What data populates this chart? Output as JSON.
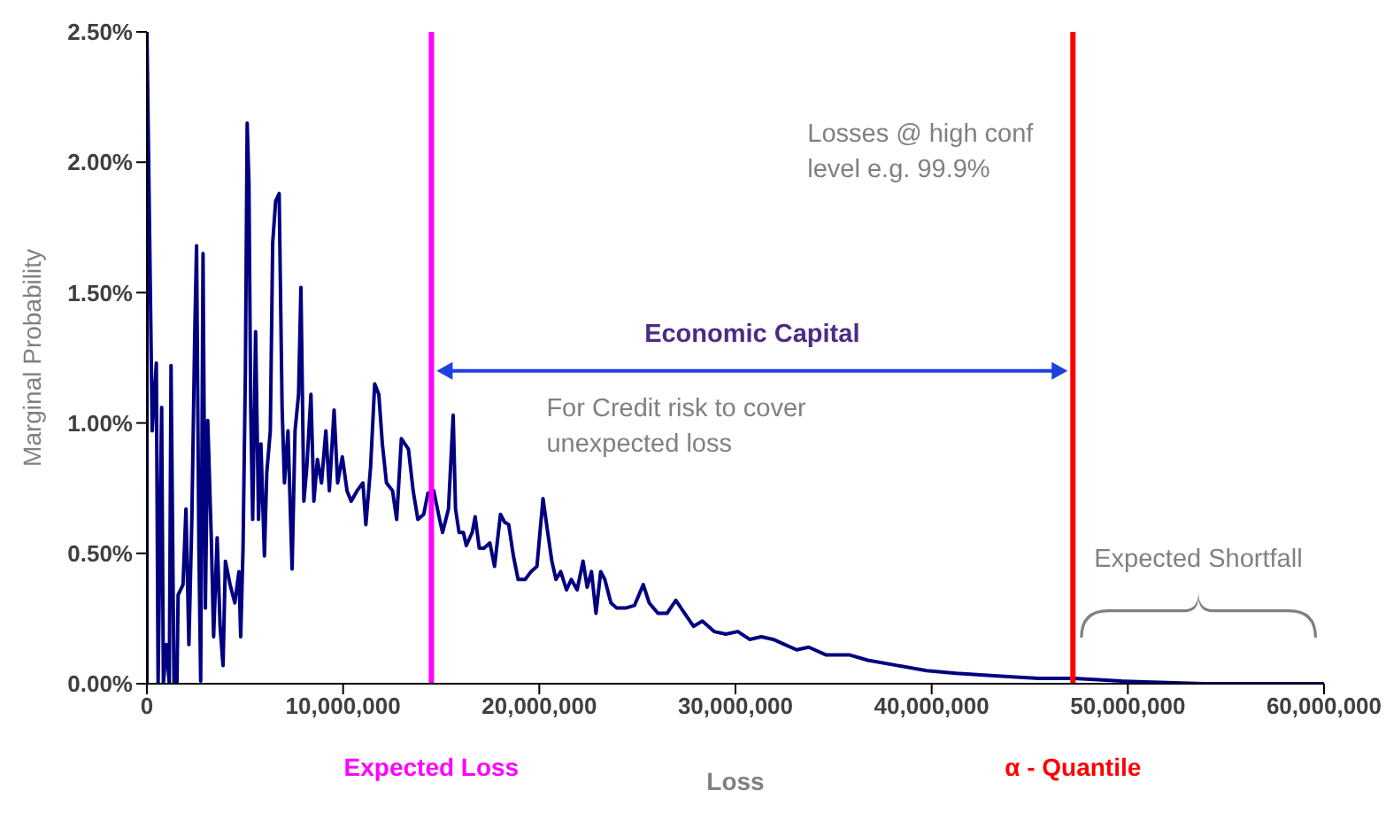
{
  "chart_data": {
    "type": "line",
    "xlabel": "Loss",
    "ylabel": "Marginal Probability",
    "x": [
      0,
      0,
      270000,
      480000,
      570000,
      630000,
      750000,
      840000,
      990000,
      1140000,
      1230000,
      1380000,
      1530000,
      1590000,
      1840000,
      1990000,
      2140000,
      2290000,
      2440000,
      2530000,
      2650000,
      2740000,
      2860000,
      2980000,
      3100000,
      3280000,
      3400000,
      3580000,
      3730000,
      3880000,
      4000000,
      4240000,
      4480000,
      4690000,
      4780000,
      4900000,
      5020000,
      5110000,
      5200000,
      5290000,
      5390000,
      5540000,
      5690000,
      5810000,
      5990000,
      6110000,
      6290000,
      6410000,
      6560000,
      6740000,
      6890000,
      7010000,
      7190000,
      7400000,
      7550000,
      7730000,
      7850000,
      8000000,
      8150000,
      8360000,
      8510000,
      8690000,
      8900000,
      9120000,
      9300000,
      9540000,
      9720000,
      9960000,
      10200000,
      10410000,
      10710000,
      11010000,
      11160000,
      11400000,
      11610000,
      11820000,
      12000000,
      12210000,
      12520000,
      12730000,
      12970000,
      13330000,
      13570000,
      13810000,
      14110000,
      14320000,
      14620000,
      14920000,
      15070000,
      15370000,
      15610000,
      15730000,
      15910000,
      16130000,
      16280000,
      16580000,
      16730000,
      16940000,
      17180000,
      17480000,
      17720000,
      18020000,
      18230000,
      18440000,
      18680000,
      18920000,
      19280000,
      19580000,
      19880000,
      20190000,
      20430000,
      20640000,
      20850000,
      21090000,
      21390000,
      21630000,
      21930000,
      22230000,
      22440000,
      22660000,
      22890000,
      23130000,
      23340000,
      23650000,
      23950000,
      24400000,
      24850000,
      25300000,
      25600000,
      26050000,
      26510000,
      26960000,
      27410000,
      27860000,
      28310000,
      28910000,
      29510000,
      30120000,
      30720000,
      31320000,
      31920000,
      32520000,
      33120000,
      33730000,
      34630000,
      35830000,
      36740000,
      38240000,
      39740000,
      41250000,
      43350000,
      45460000,
      47260000,
      49670000,
      53880000,
      60000000
    ],
    "series": [
      {
        "color": "#000080",
        "values": [
          0,
          2.5,
          0.97,
          1.23,
          0,
          0.36,
          1.06,
          0,
          0.15,
          0,
          1.22,
          0,
          0,
          0.34,
          0.38,
          0.67,
          0.15,
          0.63,
          1.35,
          1.68,
          0.52,
          0.01,
          1.65,
          0.29,
          1.01,
          0.56,
          0.18,
          0.56,
          0.22,
          0.07,
          0.47,
          0.38,
          0.31,
          0.43,
          0.18,
          0.52,
          1.2,
          2.15,
          1.92,
          1.06,
          0.63,
          1.35,
          0.63,
          0.92,
          0.49,
          0.81,
          0.97,
          1.69,
          1.85,
          1.88,
          1.06,
          0.77,
          0.97,
          0.44,
          0.97,
          1.11,
          1.52,
          0.7,
          0.83,
          1.11,
          0.7,
          0.86,
          0.77,
          0.97,
          0.74,
          1.05,
          0.77,
          0.87,
          0.74,
          0.7,
          0.74,
          0.77,
          0.61,
          0.83,
          1.15,
          1.11,
          0.92,
          0.77,
          0.74,
          0.63,
          0.94,
          0.9,
          0.74,
          0.63,
          0.65,
          0.73,
          0.74,
          0.63,
          0.58,
          0.67,
          1.03,
          0.67,
          0.58,
          0.58,
          0.53,
          0.58,
          0.64,
          0.52,
          0.52,
          0.54,
          0.45,
          0.65,
          0.62,
          0.61,
          0.49,
          0.4,
          0.4,
          0.43,
          0.45,
          0.71,
          0.58,
          0.47,
          0.4,
          0.43,
          0.36,
          0.4,
          0.36,
          0.47,
          0.37,
          0.43,
          0.27,
          0.43,
          0.4,
          0.31,
          0.29,
          0.29,
          0.3,
          0.38,
          0.31,
          0.27,
          0.27,
          0.32,
          0.27,
          0.22,
          0.24,
          0.2,
          0.19,
          0.2,
          0.17,
          0.18,
          0.17,
          0.15,
          0.13,
          0.14,
          0.11,
          0.11,
          0.09,
          0.07,
          0.05,
          0.04,
          0.03,
          0.02,
          0.02,
          0.01,
          0,
          0
        ]
      }
    ],
    "xlim": [
      0,
      60000000
    ],
    "xticks": [
      {
        "value": 0,
        "label": "0"
      },
      {
        "value": 10000000,
        "label": "10,000,000"
      },
      {
        "value": 20000000,
        "label": "20,000,000"
      },
      {
        "value": 30000000,
        "label": "30,000,000"
      },
      {
        "value": 40000000,
        "label": "40,000,000"
      },
      {
        "value": 50000000,
        "label": "50,000,000"
      },
      {
        "value": 60000000,
        "label": "60,000,000"
      }
    ],
    "ylim": [
      0,
      2.5
    ],
    "yticks": [
      {
        "value": 0,
        "label": "0.00%"
      },
      {
        "value": 0.5,
        "label": "0.50%"
      },
      {
        "value": 1,
        "label": "1.00%"
      },
      {
        "value": 1.5,
        "label": "1.50%"
      },
      {
        "value": 2,
        "label": "2.00%"
      },
      {
        "value": 2.5,
        "label": "2.50%"
      }
    ],
    "ref_lines": [
      {
        "axis": "x",
        "value": 14500000,
        "label": "Expected Loss",
        "color": "#ff00ff"
      },
      {
        "axis": "x",
        "value": 47200000,
        "label": "α - Quantile",
        "color": "#ff0000"
      }
    ],
    "annotations": [
      "Losses @ high conf level e.g. 99.9%",
      "Economic Capital",
      "For Credit risk to cover unexpected loss",
      "Expected Shortfall"
    ],
    "grid": false,
    "legend": false,
    "marker": "none",
    "line_style": "solid"
  }
}
